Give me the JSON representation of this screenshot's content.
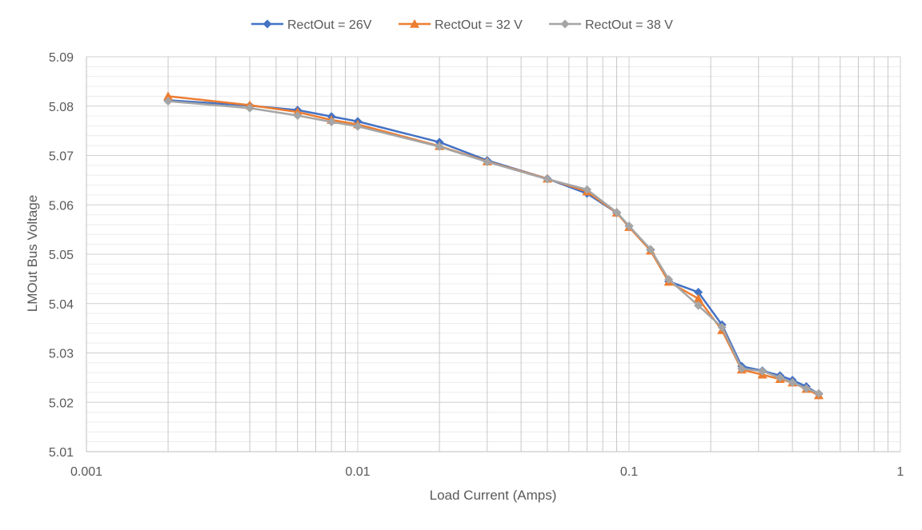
{
  "chart_data": {
    "type": "line",
    "title": "",
    "xlabel": "Load Current (Amps)",
    "ylabel": "LMOut Bus Voltage",
    "x_scale": "log",
    "xlim": [
      0.001,
      1
    ],
    "ylim": [
      5.01,
      5.09
    ],
    "grid": true,
    "legend_position": "top",
    "x_tick_labels": [
      "0.001",
      "0.01",
      "0.1",
      "1"
    ],
    "y_tick_labels": [
      "5.01",
      "5.02",
      "5.03",
      "5.04",
      "5.05",
      "5.06",
      "5.07",
      "5.08",
      "5.09"
    ],
    "series": [
      {
        "name": "RectOut = 26V",
        "color": "#4472C4",
        "marker": "diamond",
        "x": [
          0.002,
          0.004,
          0.006,
          0.008,
          0.01,
          0.02,
          0.03,
          0.05,
          0.07,
          0.09,
          0.1,
          0.12,
          0.14,
          0.18,
          0.22,
          0.26,
          0.31,
          0.36,
          0.4,
          0.45,
          0.5
        ],
        "y": [
          5.0812,
          5.0801,
          5.0792,
          5.0779,
          5.0769,
          5.0727,
          5.069,
          5.0653,
          5.0623,
          5.0584,
          5.0557,
          5.0509,
          5.0445,
          5.0423,
          5.0357,
          5.0273,
          5.0264,
          5.0254,
          5.0245,
          5.0232,
          5.0217
        ]
      },
      {
        "name": "RectOut = 32 V",
        "color": "#ED7D31",
        "marker": "triangle",
        "x": [
          0.002,
          0.004,
          0.006,
          0.008,
          0.01,
          0.02,
          0.03,
          0.05,
          0.07,
          0.09,
          0.1,
          0.12,
          0.14,
          0.18,
          0.22,
          0.26,
          0.31,
          0.36,
          0.4,
          0.45,
          0.5
        ],
        "y": [
          5.082,
          5.0802,
          5.0788,
          5.0772,
          5.0763,
          5.0719,
          5.0688,
          5.0653,
          5.0627,
          5.0584,
          5.0555,
          5.0507,
          5.0444,
          5.041,
          5.0346,
          5.0266,
          5.0256,
          5.0247,
          5.024,
          5.0227,
          5.0214
        ]
      },
      {
        "name": "RectOut = 38 V",
        "color": "#A5A5A5",
        "marker": "diamond",
        "x": [
          0.002,
          0.004,
          0.006,
          0.008,
          0.01,
          0.02,
          0.03,
          0.05,
          0.07,
          0.09,
          0.1,
          0.12,
          0.14,
          0.18,
          0.22,
          0.26,
          0.31,
          0.36,
          0.4,
          0.45,
          0.5
        ],
        "y": [
          5.081,
          5.0796,
          5.0781,
          5.0768,
          5.0759,
          5.0718,
          5.0687,
          5.0652,
          5.0631,
          5.0585,
          5.0557,
          5.051,
          5.0449,
          5.0396,
          5.0352,
          5.0268,
          5.0263,
          5.025,
          5.024,
          5.0228,
          5.0218
        ]
      }
    ]
  }
}
